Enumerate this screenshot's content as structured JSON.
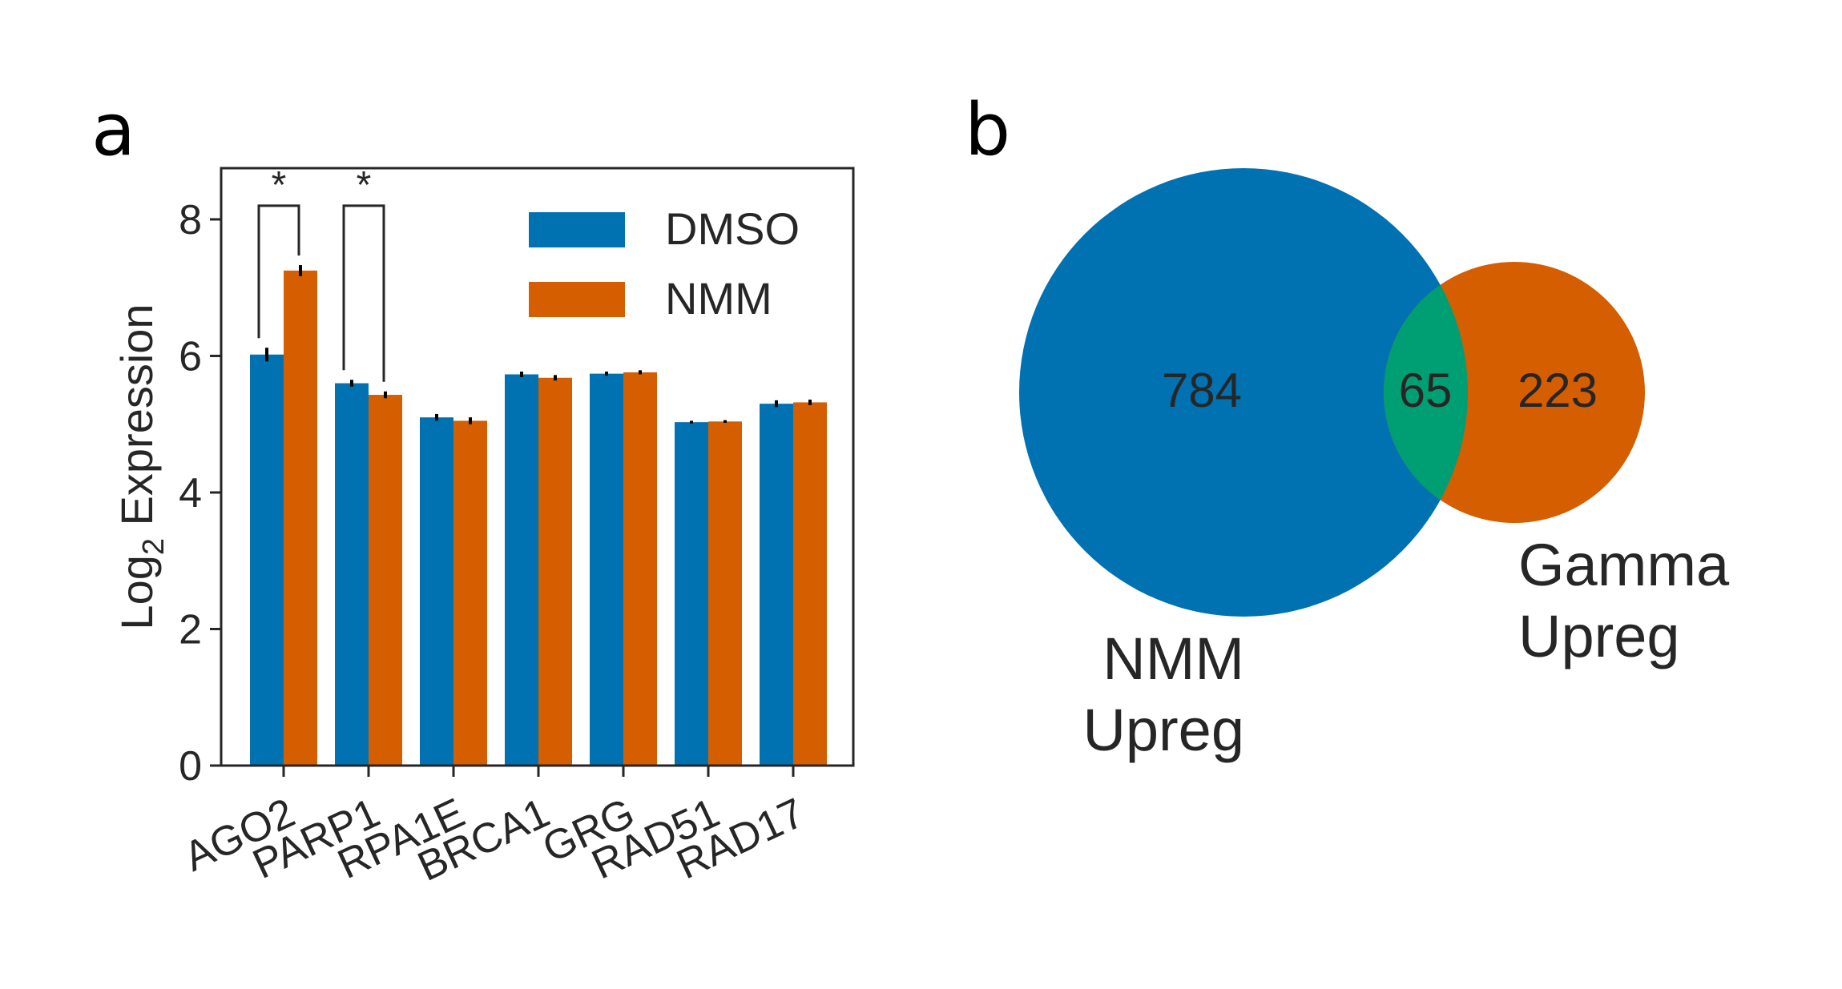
{
  "panels": {
    "a": "a",
    "b": "b"
  },
  "colors": {
    "dmso": "#0072b2",
    "nmm": "#d55e00",
    "overlap": "#009e73",
    "axis": "#262626",
    "errorbar": "#000000"
  },
  "chart_data": [
    {
      "type": "bar",
      "categories": [
        "AGO2",
        "PARP1",
        "RPA1E",
        "BRCA1",
        "GRG",
        "RAD51",
        "RAD17"
      ],
      "series": [
        {
          "name": "DMSO",
          "values": [
            6.02,
            5.6,
            5.1,
            5.73,
            5.74,
            5.03,
            5.3
          ],
          "errors": [
            0.1,
            0.05,
            0.05,
            0.04,
            0.03,
            0.02,
            0.05
          ]
        },
        {
          "name": "NMM",
          "values": [
            7.25,
            5.43,
            5.05,
            5.68,
            5.76,
            5.04,
            5.32
          ],
          "errors": [
            0.08,
            0.05,
            0.05,
            0.04,
            0.03,
            0.02,
            0.04
          ]
        }
      ],
      "significance": [
        {
          "category": "AGO2",
          "label": "*"
        },
        {
          "category": "PARP1",
          "label": "*"
        }
      ],
      "ylabel": "Log",
      "ylabel_subscript": "2",
      "ylabel_suffix": " Expression",
      "ylim": [
        0,
        8.75
      ],
      "yticks": [
        "0",
        "2",
        "4",
        "6",
        "8"
      ],
      "legend_position": "top-right",
      "grid": false
    },
    {
      "type": "venn",
      "sets": [
        {
          "label_line1": "NMM",
          "label_line2": "Upreg",
          "only": 784
        },
        {
          "label_line1": "Gamma",
          "label_line2": "Upreg",
          "only": 223
        }
      ],
      "intersection": 65
    }
  ]
}
